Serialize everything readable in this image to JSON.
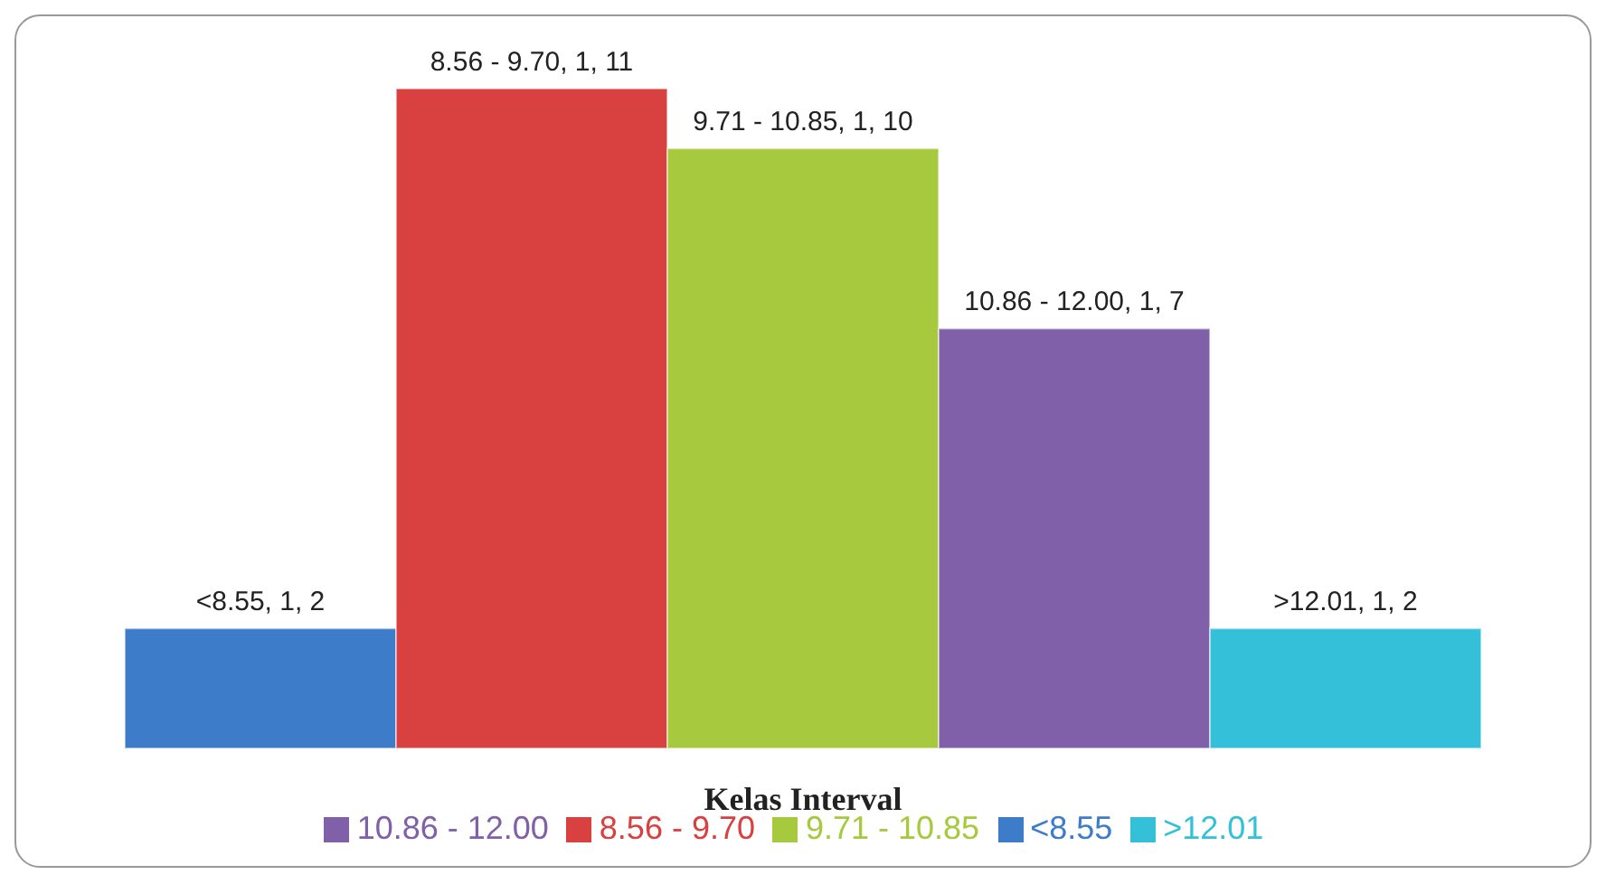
{
  "chart_data": {
    "type": "bar",
    "xlabel": "Kelas Interval",
    "categories": [
      null
    ],
    "tick_labels": false,
    "legend": "bottom",
    "series": [
      {
        "name": "<8.55",
        "color": "#3d7cc9",
        "values": [
          2
        ],
        "value_labels": [
          "<8.55, 1, 2"
        ]
      },
      {
        "name": "8.56 - 9.70",
        "color": "#d94040",
        "values": [
          11
        ],
        "value_labels": [
          "8.56 - 9.70, 1, 11"
        ]
      },
      {
        "name": "9.71 - 10.85",
        "color": "#a6c93d",
        "values": [
          10
        ],
        "value_labels": [
          "9.71 - 10.85, 1, 10"
        ]
      },
      {
        "name": "10.86 - 12.00",
        "color": "#8060a8",
        "values": [
          7
        ],
        "value_labels": [
          "10.86 - 12.00, 1, 7"
        ]
      },
      {
        "name": ">12.01",
        "color": "#33c0d8",
        "values": [
          2
        ],
        "value_labels": [
          ">12.01, 1, 2"
        ]
      }
    ]
  }
}
